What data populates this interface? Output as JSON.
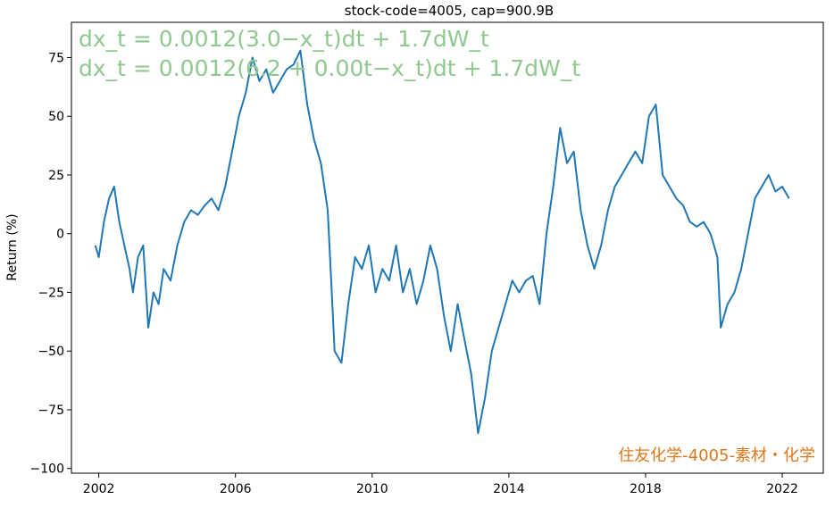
{
  "chart_data": {
    "type": "line",
    "title": "stock-code=4005, cap=900.9B",
    "xlabel": "",
    "ylabel": "Return (%)",
    "xlim": [
      2001.2,
      2023.2
    ],
    "ylim": [
      -102,
      90
    ],
    "x_ticks": [
      2002,
      2006,
      2010,
      2014,
      2018,
      2022
    ],
    "x_tick_labels": [
      "2002",
      "2006",
      "2010",
      "2014",
      "2018",
      "2022"
    ],
    "y_ticks": [
      75,
      50,
      25,
      0,
      -25,
      -50,
      -75,
      -100
    ],
    "y_tick_labels": [
      "75",
      "50",
      "25",
      "0",
      "−25",
      "−50",
      "−75",
      "−100"
    ],
    "grid": false,
    "annotations": [
      "dx_t = 0.0012(3.0−x_t)dt + 1.7dW_t",
      "dx_t = 0.0012(6.2 + 0.00t−x_t)dt + 1.7dW_t"
    ],
    "watermark": "住友化学-4005-素材・化学",
    "series": [
      {
        "color": "#1f77b4",
        "x": [
          2001.9,
          2002.0,
          2002.15,
          2002.3,
          2002.45,
          2002.6,
          2002.75,
          2002.9,
          2003.0,
          2003.15,
          2003.3,
          2003.45,
          2003.6,
          2003.75,
          2003.9,
          2004.1,
          2004.3,
          2004.5,
          2004.7,
          2004.9,
          2005.1,
          2005.3,
          2005.5,
          2005.7,
          2005.9,
          2006.1,
          2006.3,
          2006.5,
          2006.7,
          2006.9,
          2007.1,
          2007.3,
          2007.5,
          2007.7,
          2007.9,
          2008.1,
          2008.3,
          2008.5,
          2008.7,
          2008.8,
          2008.9,
          2009.1,
          2009.3,
          2009.5,
          2009.7,
          2009.9,
          2010.1,
          2010.3,
          2010.5,
          2010.7,
          2010.9,
          2011.1,
          2011.3,
          2011.5,
          2011.7,
          2011.9,
          2012.1,
          2012.3,
          2012.5,
          2012.7,
          2012.9,
          2013.1,
          2013.3,
          2013.5,
          2013.7,
          2013.9,
          2014.1,
          2014.3,
          2014.5,
          2014.7,
          2014.9,
          2015.1,
          2015.3,
          2015.5,
          2015.7,
          2015.9,
          2016.1,
          2016.3,
          2016.5,
          2016.7,
          2016.9,
          2017.1,
          2017.3,
          2017.5,
          2017.7,
          2017.9,
          2018.1,
          2018.3,
          2018.5,
          2018.7,
          2018.9,
          2019.1,
          2019.3,
          2019.5,
          2019.7,
          2019.9,
          2020.1,
          2020.2,
          2020.4,
          2020.6,
          2020.8,
          2021.0,
          2021.2,
          2021.4,
          2021.6,
          2021.8,
          2022.0,
          2022.2
        ],
        "values": [
          -5,
          -10,
          5,
          15,
          20,
          5,
          -5,
          -15,
          -25,
          -10,
          -5,
          -40,
          -25,
          -30,
          -15,
          -20,
          -5,
          5,
          10,
          8,
          12,
          15,
          10,
          20,
          35,
          50,
          60,
          75,
          65,
          70,
          60,
          65,
          70,
          72,
          78,
          55,
          40,
          30,
          10,
          -20,
          -50,
          -55,
          -30,
          -10,
          -15,
          -5,
          -25,
          -15,
          -20,
          -5,
          -25,
          -15,
          -30,
          -20,
          -5,
          -15,
          -35,
          -50,
          -30,
          -45,
          -60,
          -85,
          -70,
          -50,
          -40,
          -30,
          -20,
          -25,
          -20,
          -18,
          -30,
          0,
          20,
          45,
          30,
          35,
          10,
          -5,
          -15,
          -5,
          10,
          20,
          25,
          30,
          35,
          30,
          50,
          55,
          25,
          20,
          15,
          12,
          5,
          3,
          5,
          0,
          -10,
          -40,
          -30,
          -25,
          -15,
          0,
          15,
          20,
          25,
          18,
          20,
          15
        ]
      }
    ]
  }
}
